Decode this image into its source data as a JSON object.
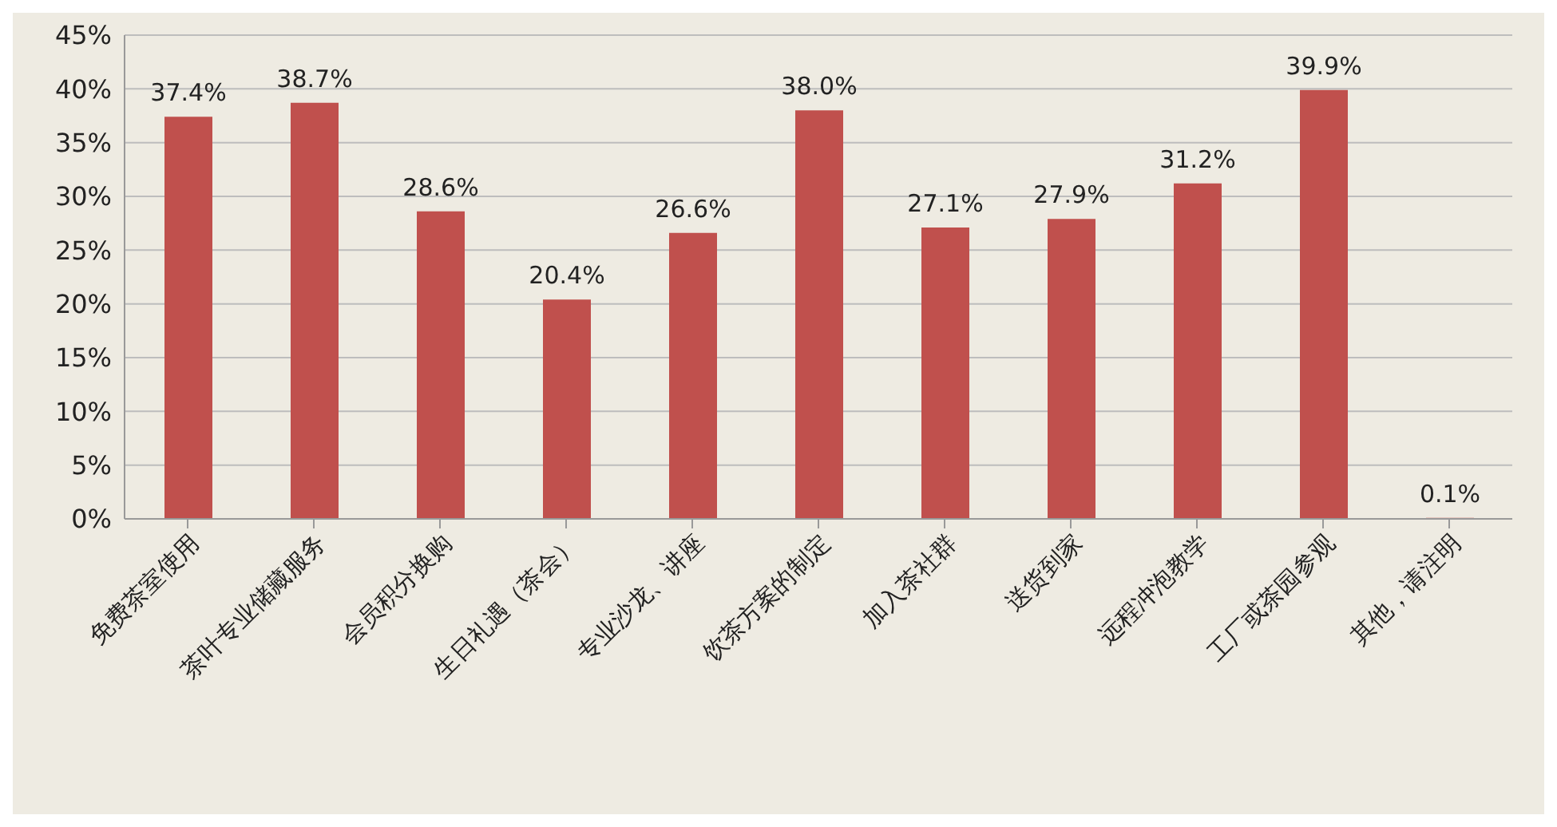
{
  "chart_data": {
    "type": "bar",
    "categories": [
      "免费茶室使用",
      "茶叶专业储藏服务",
      "会员积分换购",
      "生日礼遇（茶会）",
      "专业沙龙、讲座",
      "饮茶方案的制定",
      "加入茶社群",
      "送货到家",
      "远程冲泡教学",
      "工厂或茶园参观",
      "其他，请注明"
    ],
    "values": [
      37.4,
      38.7,
      28.6,
      20.4,
      26.6,
      38.0,
      27.1,
      27.9,
      31.2,
      39.9,
      0.1
    ],
    "value_labels": [
      "37.4%",
      "38.7%",
      "28.6%",
      "20.4%",
      "26.6%",
      "38.0%",
      "27.1%",
      "27.9%",
      "31.2%",
      "39.9%",
      "0.1%"
    ],
    "color": "#c0504d",
    "ylim": [
      0,
      45
    ],
    "yticks": [
      {
        "value": 0,
        "label": "0%"
      },
      {
        "value": 5,
        "label": "5%"
      },
      {
        "value": 10,
        "label": "10%"
      },
      {
        "value": 15,
        "label": "15%"
      },
      {
        "value": 20,
        "label": "20%"
      },
      {
        "value": 25,
        "label": "25%"
      },
      {
        "value": 30,
        "label": "30%"
      },
      {
        "value": 35,
        "label": "35%"
      },
      {
        "value": 40,
        "label": "40%"
      },
      {
        "value": 45,
        "label": "45%"
      }
    ],
    "grid": "y"
  }
}
